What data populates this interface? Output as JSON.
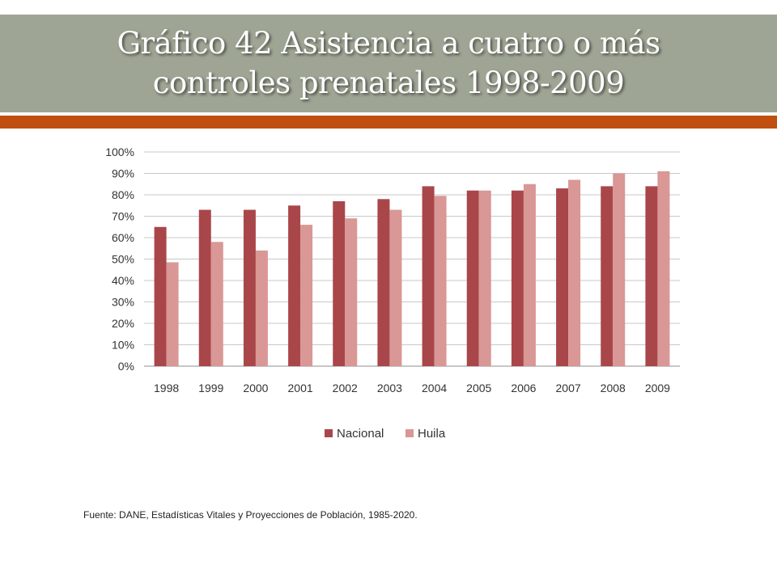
{
  "header": {
    "title": "Gráfico 42 Asistencia a cuatro o más controles prenatales 1998-2009"
  },
  "footer": {
    "source": "Fuente: DANE, Estadísticas Vitales y Proyecciones de Población, 1985-2020."
  },
  "colors": {
    "title_band": "#9ea594",
    "accent_bar": "#c0500f",
    "nacional": "#a9464a",
    "huila": "#d99795"
  },
  "chart_data": {
    "type": "bar",
    "title": "",
    "xlabel": "",
    "ylabel": "",
    "categories": [
      "1998",
      "1999",
      "2000",
      "2001",
      "2002",
      "2003",
      "2004",
      "2005",
      "2006",
      "2007",
      "2008",
      "2009"
    ],
    "series": [
      {
        "name": "Nacional",
        "values": [
          65,
          73,
          73,
          75,
          77,
          78,
          84,
          82,
          82,
          83,
          84,
          84
        ]
      },
      {
        "name": "Huila",
        "values": [
          48.5,
          58,
          54,
          66,
          69,
          73,
          79.5,
          82,
          85,
          87,
          90,
          91
        ]
      }
    ],
    "ylim": [
      0,
      100
    ],
    "yticks": [
      "0%",
      "10%",
      "20%",
      "30%",
      "40%",
      "50%",
      "60%",
      "70%",
      "80%",
      "90%",
      "100%"
    ],
    "grid": true,
    "legend_position": "bottom"
  }
}
